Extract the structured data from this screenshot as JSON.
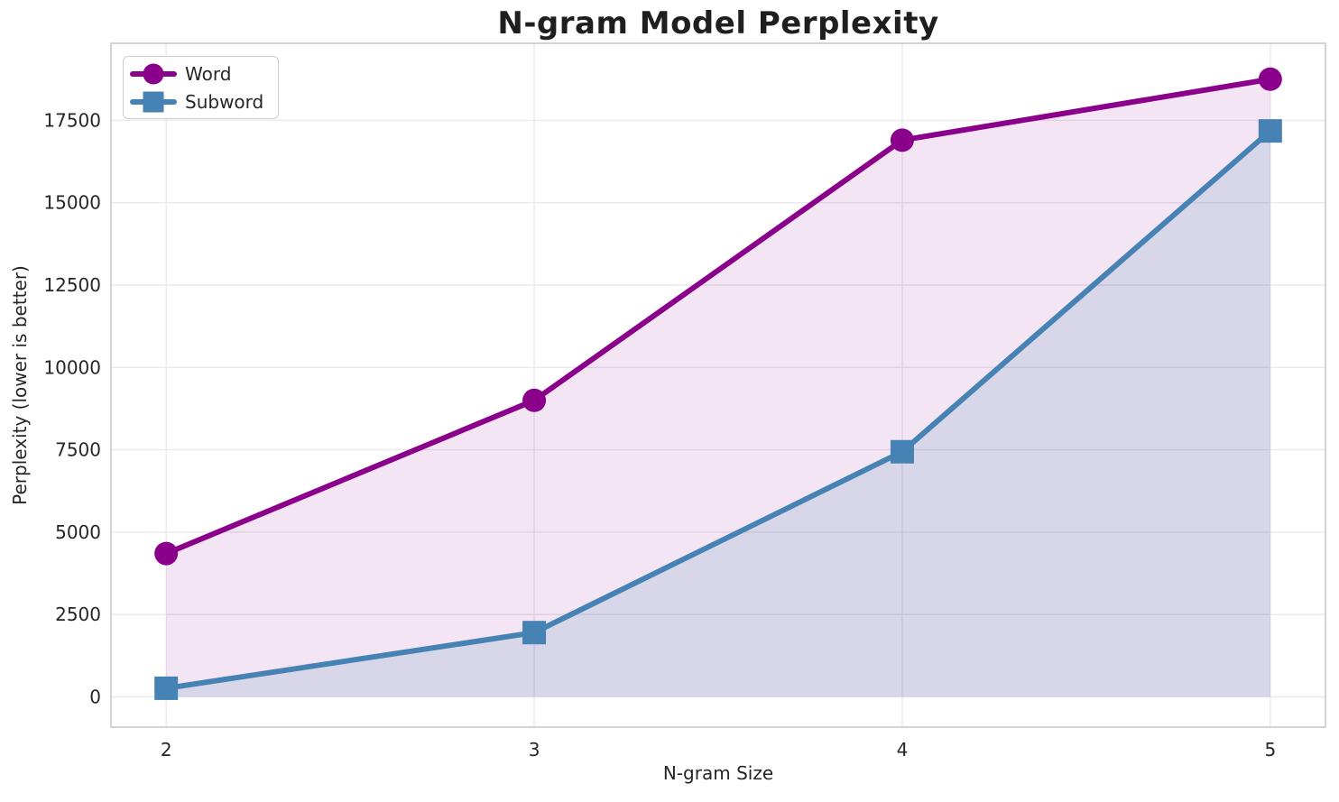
{
  "figure": {
    "background": "#ffffff"
  },
  "chart_data": {
    "type": "line",
    "title": "N-gram Model Perplexity",
    "xlabel": "N-gram Size",
    "ylabel": "Perplexity (lower is better)",
    "x": [
      2,
      3,
      4,
      5
    ],
    "xticks": [
      2,
      3,
      4,
      5
    ],
    "yticks": [
      0,
      2500,
      5000,
      7500,
      10000,
      12500,
      15000,
      17500
    ],
    "xlim": [
      1.85,
      5.15
    ],
    "ylim": [
      -920,
      19840
    ],
    "grid": true,
    "fill_baseline": 0,
    "legend_position": "upper left",
    "series": [
      {
        "name": "Word",
        "marker": "circle",
        "color": "#8B008B",
        "fill_alpha": 0.1,
        "values": [
          4350,
          9000,
          16900,
          18750
        ]
      },
      {
        "name": "Subword",
        "marker": "square",
        "color": "#4682B4",
        "fill_alpha": 0.15,
        "values": [
          260,
          1950,
          7440,
          17180
        ]
      }
    ]
  },
  "style": {
    "grid_color": "#e9e9ef",
    "spine_color": "#cccccc",
    "text_color": "#262626"
  }
}
